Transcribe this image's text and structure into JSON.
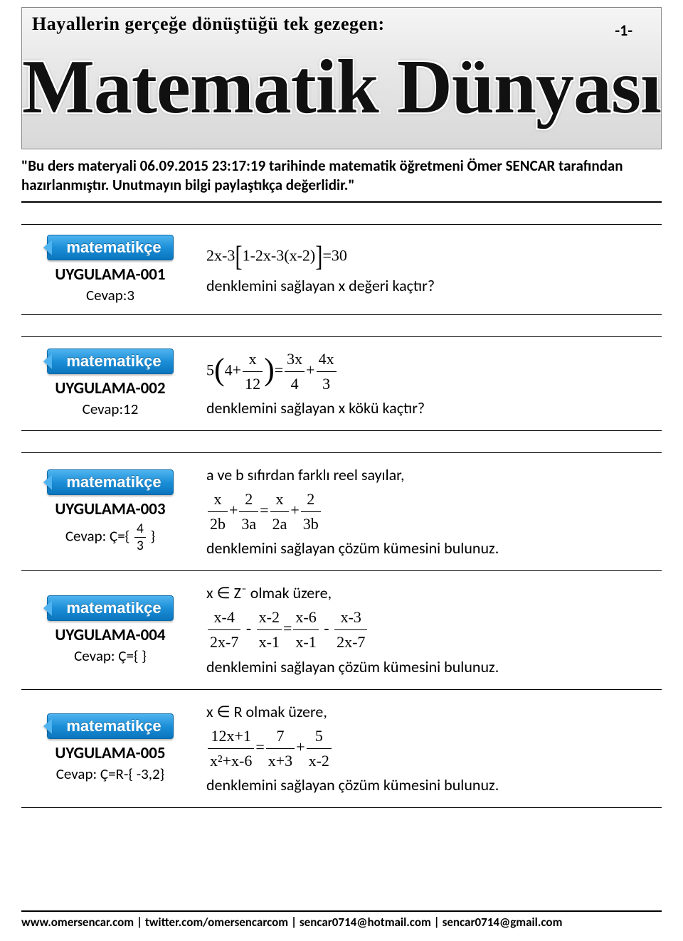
{
  "banner": {
    "tagline": "Hayallerin gerçeğe dönüştüğü tek gezegen:",
    "pagenum": "-1-",
    "title": "Matematik Dünyası",
    "bg_gradient": [
      "#f5f5f5",
      "#e8e8e8",
      "#d8d8d8"
    ],
    "title_color": "#111111"
  },
  "intro": "\"Bu ders materyali 06.09.2015 23:17:19 tarihinde matematik öğretmeni Ömer SENCAR tarafından hazırlanmıştır. Unutmayın bilgi paylaştıkça değerlidir.\"",
  "badge_label": "matematikçe",
  "badge_colors": {
    "top": "#4fb4ef",
    "mid": "#1c8fd8",
    "bottom": "#0b75bd",
    "border": "#0b6aa8"
  },
  "problems": [
    {
      "id": "UYGULAMA-001",
      "answer_label": "Cevap:3",
      "eq": {
        "type": "text-eq",
        "display": "2x-3[1-2x-3(x-2)]=30"
      },
      "q_after": "denklemini sağlayan x değeri kaçtır?"
    },
    {
      "id": "UYGULAMA-002",
      "answer_label": "Cevap:12",
      "eq": {
        "type": "frac-eq",
        "lhs_prefix": "5",
        "lhs_inner_const": "4+",
        "lhs_inner_frac": {
          "n": "x",
          "d": "12"
        },
        "rhs_frac1": {
          "n": "3x",
          "d": "4"
        },
        "rhs_op": "+",
        "rhs_frac2": {
          "n": "4x",
          "d": "3"
        }
      },
      "q_after": "denklemini sağlayan x kökü kaçtır?"
    },
    {
      "id": "UYGULAMA-003",
      "answer_label_prefix": "Cevap: Ç={ ",
      "answer_frac": {
        "n": "4",
        "d": "3"
      },
      "answer_label_suffix": " }",
      "q_before": "a ve b sıfırdan farklı reel sayılar,",
      "eq": {
        "type": "four-frac",
        "t1": {
          "n": "x",
          "d": "2b"
        },
        "op1": "+",
        "t2": {
          "n": "2",
          "d": "3a"
        },
        "eqs": "=",
        "t3": {
          "n": "x",
          "d": "2a"
        },
        "op2": "+",
        "t4": {
          "n": "2",
          "d": "3b"
        }
      },
      "q_after": "denklemini sağlayan çözüm kümesini bulunuz."
    },
    {
      "id": "UYGULAMA-004",
      "answer_label": "Cevap: Ç={ }",
      "q_before": "x ∈ Z⁻  olmak üzere,",
      "eq": {
        "type": "four-frac",
        "t1": {
          "n": "x-4",
          "d": "2x-7"
        },
        "op1": "-",
        "t2": {
          "n": "x-2",
          "d": "x-1"
        },
        "eqs": "=",
        "t3": {
          "n": "x-6",
          "d": "x-1"
        },
        "op2": "-",
        "t4": {
          "n": "x-3",
          "d": "2x-7"
        }
      },
      "q_after": "denklemini sağlayan çözüm kümesini bulunuz."
    },
    {
      "id": "UYGULAMA-005",
      "answer_label": "Cevap: Ç=R-{ -3,2}",
      "q_before": "x ∈ R  olmak üzere,",
      "eq": {
        "type": "three-frac",
        "t1": {
          "n": "12x+1",
          "d": "x²+x-6"
        },
        "eqs": "=",
        "t2": {
          "n": "7",
          "d": "x+3"
        },
        "op": "+",
        "t3": {
          "n": "5",
          "d": "x-2"
        }
      },
      "q_after": "denklemini sağlayan çözüm kümesini bulunuz."
    }
  ],
  "footer": "www.omersencar.com  |  twitter.com/omersencarcom  |  sencar0714@hotmail.com  |  sencar0714@gmail.com",
  "fontsize": {
    "tagline": 26,
    "bigtitle": 108,
    "intro": 21,
    "body": 22,
    "uyg": 23,
    "cevap": 21,
    "footer": 17
  },
  "colors": {
    "text": "#000000",
    "background": "#ffffff",
    "rule": "#000000"
  }
}
